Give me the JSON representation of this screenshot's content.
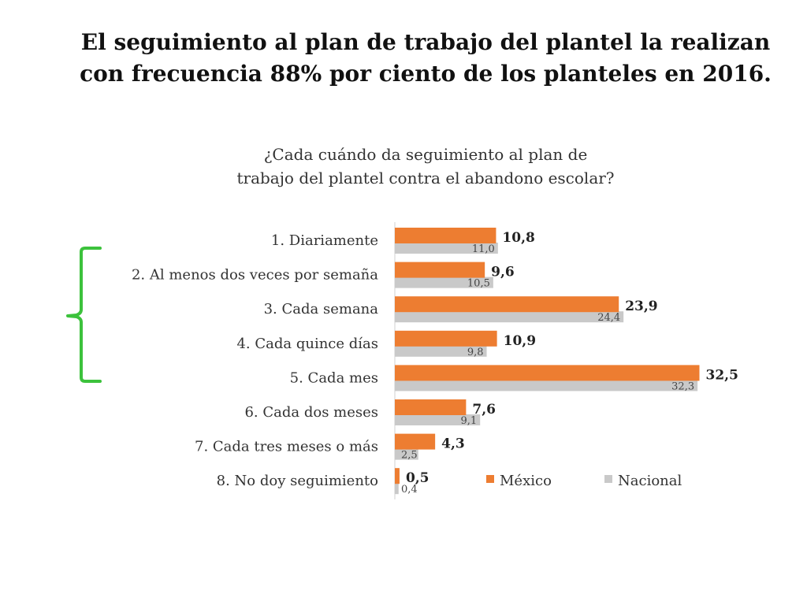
{
  "headline": {
    "line1": "El seguimiento al plan de trabajo del plantel la realizan",
    "line2": "con frecuencia 88% por ciento de los planteles en 2016."
  },
  "chart_data": {
    "type": "bar",
    "orientation": "horizontal",
    "title_lines": [
      "¿Cada cuándo da seguimiento al plan de",
      "trabajo del plantel contra el abandono escolar?"
    ],
    "categories": [
      "1. Diariamente",
      "2. Al menos dos veces por semaña",
      "3. Cada semana",
      "4. Cada quince días",
      "5. Cada mes",
      "6. Cada dos meses",
      "7. Cada tres meses o más",
      "8. No doy seguimiento"
    ],
    "series": [
      {
        "name": "México",
        "color": "#ED7D31",
        "values": [
          10.8,
          9.6,
          23.9,
          10.9,
          32.5,
          7.6,
          4.3,
          0.5
        ],
        "labels": [
          "10,8",
          "9,6",
          "23,9",
          "10,9",
          "32,5",
          "7,6",
          "4,3",
          "0,5"
        ]
      },
      {
        "name": "Nacional",
        "color": "#C9C9C9",
        "values": [
          11.0,
          10.5,
          24.4,
          9.8,
          32.3,
          9.1,
          2.5,
          0.4
        ],
        "labels": [
          "11,0",
          "10,5",
          "24,4",
          "9,8",
          "32,3",
          "9,1",
          "2,5",
          "0,4"
        ]
      }
    ],
    "xlim": [
      0,
      35
    ],
    "grid": false,
    "legend_position": "bottom-right",
    "bracket_color": "#3CC23C"
  }
}
